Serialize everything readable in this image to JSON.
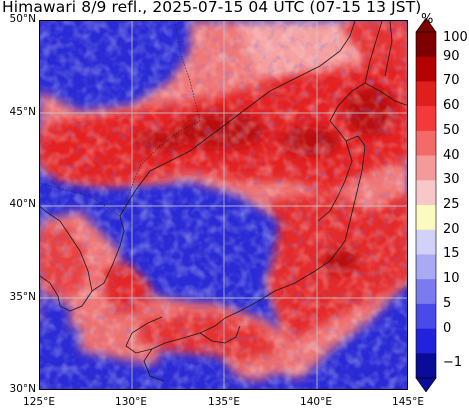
{
  "title": "Himawari 8/9 refl., 2025-07-15 04 UTC (07-15 13 JST)",
  "map": {
    "lat_labels": [
      "50°N",
      "45°N",
      "40°N",
      "35°N",
      "30°N"
    ],
    "lon_labels": [
      "125°E",
      "130°E",
      "135°E",
      "140°E",
      "145°E"
    ],
    "lat_range": [
      30,
      50
    ],
    "lon_range": [
      125,
      145
    ]
  },
  "colorbar": {
    "unit": "%",
    "ticks": [
      "100",
      "90",
      "70",
      "60",
      "50",
      "40",
      "30",
      "25",
      "20",
      "15",
      "10",
      "5",
      "0",
      "−1"
    ],
    "colors": [
      "#7e0000",
      "#b50000",
      "#e01e1e",
      "#f23a3a",
      "#f26a6a",
      "#f49a9a",
      "#f6c8c8",
      "#fbfbc0",
      "#d2d2f8",
      "#aaaaf4",
      "#7b7bef",
      "#4a4ae8",
      "#2222dd",
      "#0b0b9a"
    ]
  }
}
